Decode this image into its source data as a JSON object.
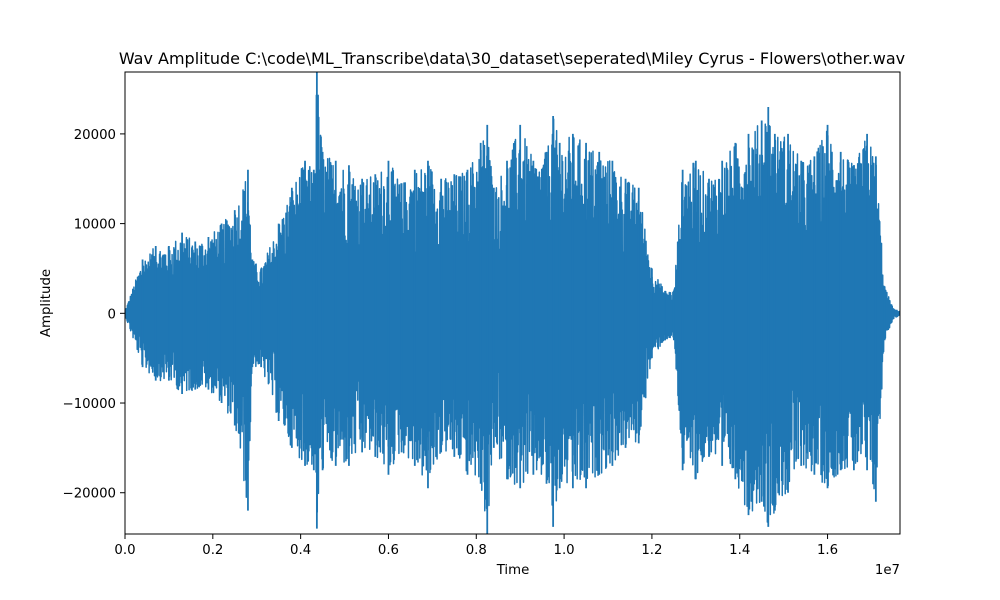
{
  "chart_data": {
    "type": "line",
    "title": "Wav Amplitude C:\\code\\ML_Transcribe\\data\\30_dataset\\seperated\\Miley Cyrus - Flowers\\other.wav",
    "xlabel": "Time",
    "ylabel": "Amplitude",
    "x_offset_label": "1e7",
    "xlim": [
      0,
      17650000
    ],
    "ylim": [
      -24600,
      26900
    ],
    "x_ticks": [
      {
        "value": 0,
        "label": "0.0"
      },
      {
        "value": 2000000,
        "label": "0.2"
      },
      {
        "value": 4000000,
        "label": "0.4"
      },
      {
        "value": 6000000,
        "label": "0.6"
      },
      {
        "value": 8000000,
        "label": "0.8"
      },
      {
        "value": 10000000,
        "label": "1.0"
      },
      {
        "value": 12000000,
        "label": "1.2"
      },
      {
        "value": 14000000,
        "label": "1.4"
      },
      {
        "value": 16000000,
        "label": "1.6"
      }
    ],
    "y_ticks": [
      {
        "value": 20000,
        "label": "20000"
      },
      {
        "value": 10000,
        "label": "10000"
      },
      {
        "value": 0,
        "label": "0"
      },
      {
        "value": -10000,
        "label": "−10000"
      },
      {
        "value": -20000,
        "label": "−20000"
      }
    ],
    "grid": false,
    "series": [
      {
        "color": "#1f77b4",
        "x": [
          0,
          400000,
          700000,
          1000000,
          1300000,
          1600000,
          1900000,
          2200000,
          2500000,
          2800000,
          2900000,
          3100000,
          3500000,
          3800000,
          4100000,
          4300000,
          4370000,
          4500000,
          4800000,
          5100000,
          5400000,
          5700000,
          6000000,
          6300000,
          6600000,
          6900000,
          7200000,
          7500000,
          7800000,
          8100000,
          8250000,
          8400000,
          8700000,
          9000000,
          9300000,
          9600000,
          9750000,
          9900000,
          10200000,
          10500000,
          10800000,
          11100000,
          11400000,
          11700000,
          12000000,
          12300000,
          12500000,
          12700000,
          13000000,
          13300000,
          13600000,
          13900000,
          14200000,
          14500000,
          14650000,
          14800000,
          15100000,
          15400000,
          15700000,
          16000000,
          16300000,
          16600000,
          16900000,
          17100000,
          17300000,
          17500000,
          17650000
        ],
        "upper": [
          200,
          6000,
          7500,
          7500,
          9000,
          8000,
          8500,
          10000,
          11500,
          16000,
          6000,
          5000,
          10000,
          14000,
          17000,
          16000,
          26900,
          18000,
          17000,
          16500,
          15000,
          15500,
          17000,
          14500,
          16000,
          17000,
          15000,
          15500,
          16000,
          19000,
          21000,
          14000,
          17000,
          21000,
          17000,
          18000,
          22000,
          19000,
          20000,
          19000,
          18000,
          17000,
          15000,
          14000,
          5000,
          2500,
          2500,
          16000,
          17000,
          15000,
          17000,
          19000,
          20000,
          21500,
          23000,
          20000,
          20000,
          17000,
          17500,
          21000,
          18000,
          16500,
          20000,
          17500,
          3000,
          500,
          200
        ],
        "lower": [
          -200,
          -6000,
          -7500,
          -7500,
          -9000,
          -8500,
          -8500,
          -10000,
          -12500,
          -22000,
          -6000,
          -6000,
          -12000,
          -15000,
          -17000,
          -17500,
          -24000,
          -17500,
          -17000,
          -17000,
          -15500,
          -16000,
          -18000,
          -15500,
          -17000,
          -19500,
          -15500,
          -16000,
          -18000,
          -19000,
          -24600,
          -15000,
          -18500,
          -19500,
          -18000,
          -19000,
          -23800,
          -19500,
          -19500,
          -19500,
          -18000,
          -17000,
          -15000,
          -14500,
          -5000,
          -3000,
          -3000,
          -17500,
          -18500,
          -16000,
          -17000,
          -18500,
          -22500,
          -21000,
          -23800,
          -22000,
          -20000,
          -17000,
          -18000,
          -19500,
          -17500,
          -17500,
          -17500,
          -21000,
          -3000,
          -600,
          -200
        ]
      }
    ]
  }
}
